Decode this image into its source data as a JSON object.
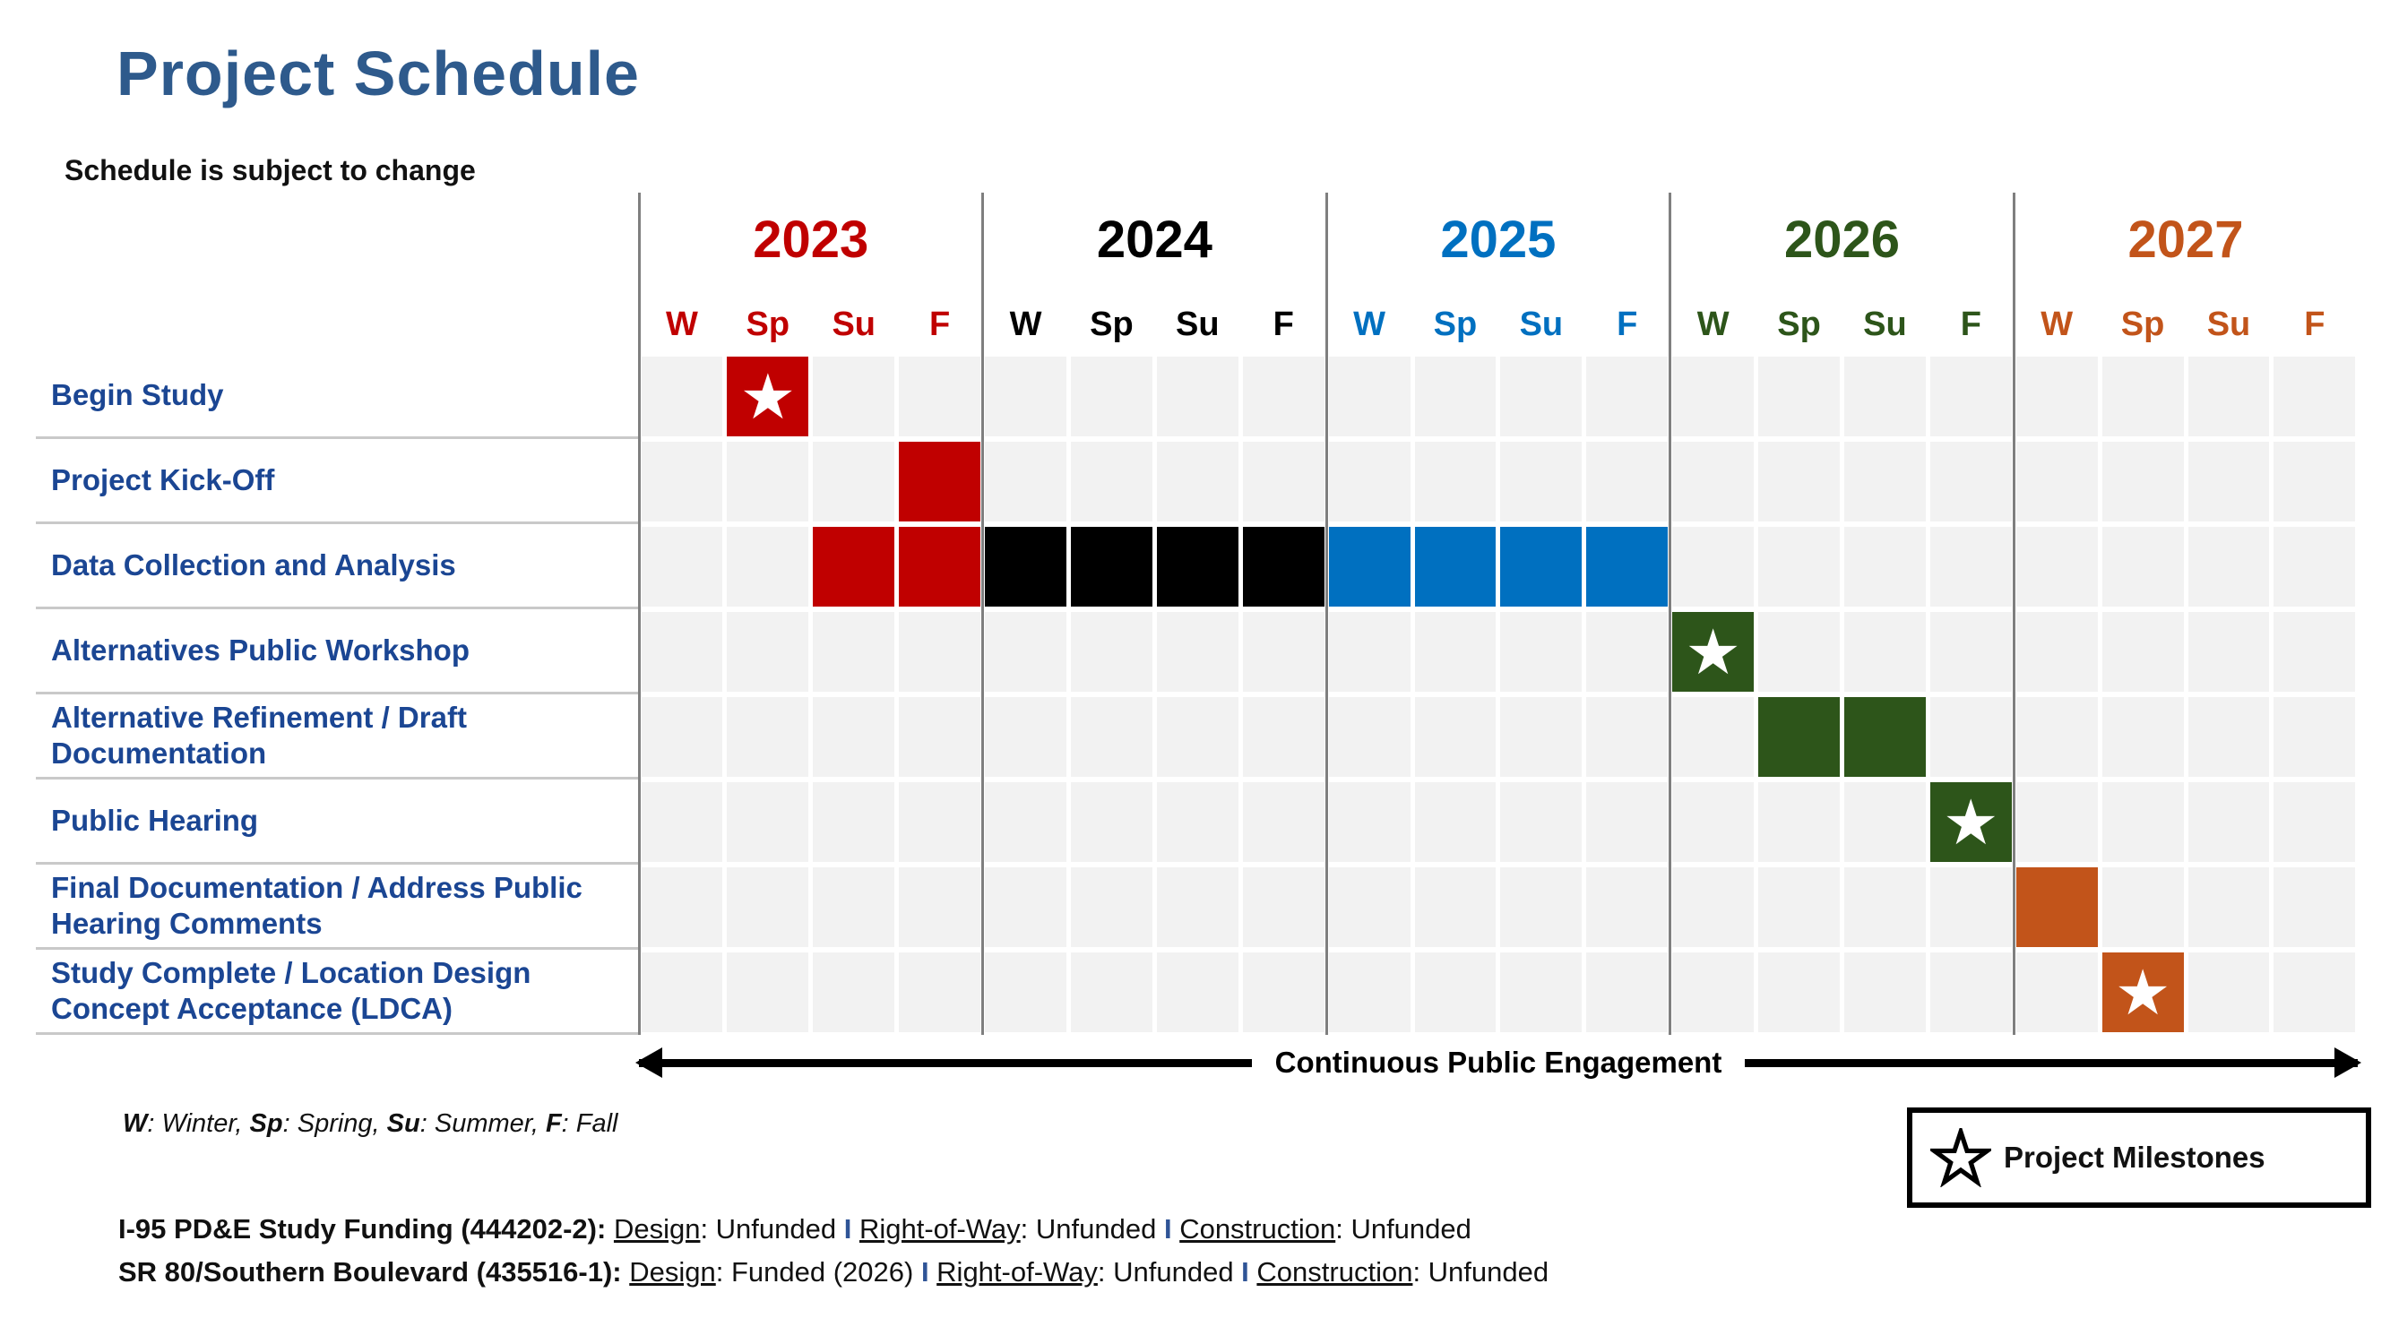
{
  "page": {
    "title": "Project Schedule",
    "subtitle": "Schedule is subject to change"
  },
  "colors": {
    "title": "#2E5A8C",
    "task_label": "#1B4693",
    "red": "#C00000",
    "black": "#000000",
    "blue": "#0070C0",
    "green": "#2D551A",
    "orange": "#C2541A",
    "separator": "#2F5496",
    "cell_bg": "#F2F2F2",
    "divider": "#7F7F7F",
    "row_line": "#C9C9C9"
  },
  "icons": {
    "milestone_star": "★"
  },
  "chart_data": {
    "type": "gantt",
    "title": "Project Schedule",
    "note": "Schedule is subject to change",
    "years": [
      {
        "label": "2023",
        "color": "red",
        "seasons": [
          "W",
          "Sp",
          "Su",
          "F"
        ]
      },
      {
        "label": "2024",
        "color": "black",
        "seasons": [
          "W",
          "Sp",
          "Su",
          "F"
        ]
      },
      {
        "label": "2025",
        "color": "blue",
        "seasons": [
          "W",
          "Sp",
          "Su",
          "F"
        ]
      },
      {
        "label": "2026",
        "color": "green",
        "seasons": [
          "W",
          "Sp",
          "Su",
          "F"
        ]
      },
      {
        "label": "2027",
        "color": "orange",
        "seasons": [
          "W",
          "Sp",
          "Su",
          "F"
        ]
      }
    ],
    "season_abbreviations": [
      {
        "abbr": "W",
        "name": "Winter"
      },
      {
        "abbr": "Sp",
        "name": "Spring"
      },
      {
        "abbr": "Su",
        "name": "Summer"
      },
      {
        "abbr": "F",
        "name": "Fall"
      }
    ],
    "tasks": [
      {
        "label": "Begin Study",
        "cells": [
          {
            "year": "2023",
            "season": "Sp",
            "color": "red",
            "milestone": true
          }
        ]
      },
      {
        "label": "Project Kick-Off",
        "cells": [
          {
            "year": "2023",
            "season": "F",
            "color": "red",
            "milestone": false
          }
        ]
      },
      {
        "label": "Data Collection and Analysis",
        "cells": [
          {
            "year": "2023",
            "season": "Su",
            "color": "red",
            "milestone": false
          },
          {
            "year": "2023",
            "season": "F",
            "color": "red",
            "milestone": false
          },
          {
            "year": "2024",
            "season": "W",
            "color": "black",
            "milestone": false
          },
          {
            "year": "2024",
            "season": "Sp",
            "color": "black",
            "milestone": false
          },
          {
            "year": "2024",
            "season": "Su",
            "color": "black",
            "milestone": false
          },
          {
            "year": "2024",
            "season": "F",
            "color": "black",
            "milestone": false
          },
          {
            "year": "2025",
            "season": "W",
            "color": "blue",
            "milestone": false
          },
          {
            "year": "2025",
            "season": "Sp",
            "color": "blue",
            "milestone": false
          },
          {
            "year": "2025",
            "season": "Su",
            "color": "blue",
            "milestone": false
          },
          {
            "year": "2025",
            "season": "F",
            "color": "blue",
            "milestone": false
          }
        ]
      },
      {
        "label": "Alternatives Public Workshop",
        "cells": [
          {
            "year": "2026",
            "season": "W",
            "color": "green",
            "milestone": true
          }
        ]
      },
      {
        "label": "Alternative Refinement / Draft Documentation",
        "cells": [
          {
            "year": "2026",
            "season": "Sp",
            "color": "green",
            "milestone": false
          },
          {
            "year": "2026",
            "season": "Su",
            "color": "green",
            "milestone": false
          }
        ]
      },
      {
        "label": "Public Hearing",
        "cells": [
          {
            "year": "2026",
            "season": "F",
            "color": "green",
            "milestone": true
          }
        ]
      },
      {
        "label": "Final Documentation / Address Public Hearing Comments",
        "cells": [
          {
            "year": "2027",
            "season": "W",
            "color": "orange",
            "milestone": false
          }
        ]
      },
      {
        "label": "Study Complete / Location Design Concept Acceptance (LDCA)",
        "cells": [
          {
            "year": "2027",
            "season": "Sp",
            "color": "orange",
            "milestone": true
          }
        ]
      }
    ],
    "continuous_engagement_label": "Continuous Public Engagement",
    "milestone_legend_label": "Project Milestones"
  },
  "footer": {
    "funding_separator": "I",
    "funding_lines": [
      {
        "prefix": "I-95 PD&E Study Funding (444202-2):",
        "items": [
          {
            "name": "Design",
            "status": "Unfunded"
          },
          {
            "name": "Right-of-Way",
            "status": "Unfunded"
          },
          {
            "name": "Construction",
            "status": "Unfunded"
          }
        ]
      },
      {
        "prefix": "SR 80/Southern Boulevard (435516-1):",
        "items": [
          {
            "name": "Design",
            "status": "Funded (2026)"
          },
          {
            "name": "Right-of-Way",
            "status": "Unfunded"
          },
          {
            "name": "Construction",
            "status": "Unfunded"
          }
        ]
      }
    ]
  }
}
